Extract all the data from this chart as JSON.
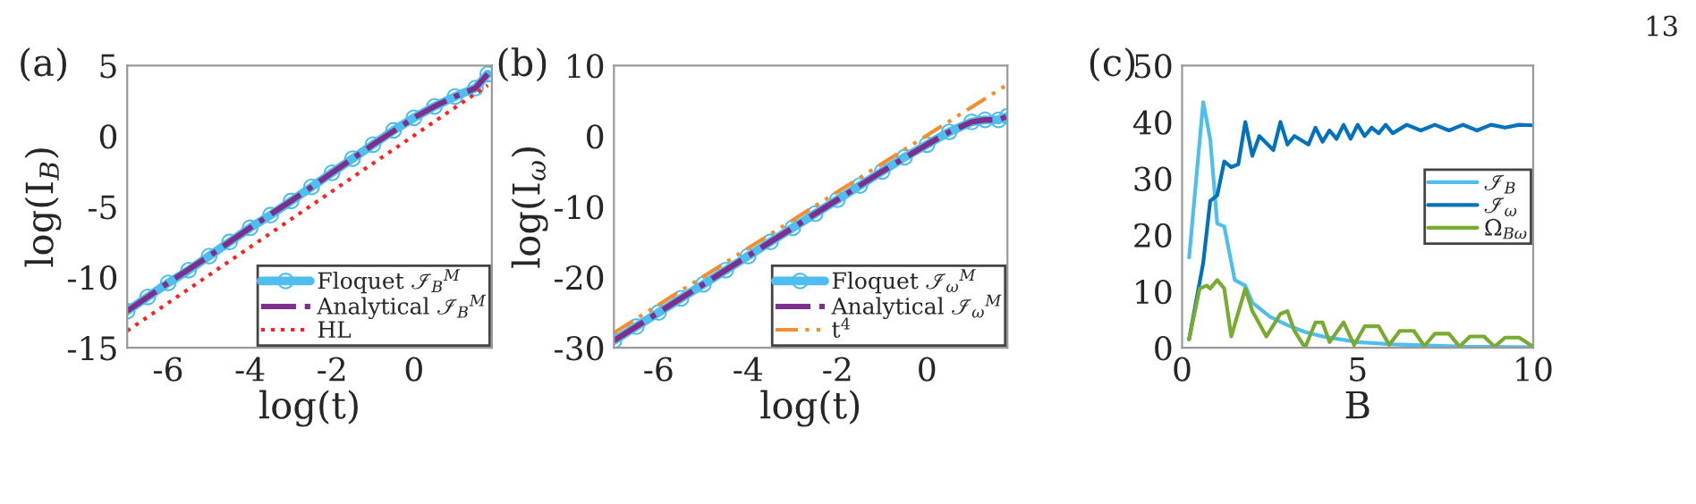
{
  "chart_data": [
    {
      "type": "line",
      "title": "(a)",
      "xlabel": "log(t)",
      "ylabel": "log(I$_{B}$)",
      "xlim": [
        -7,
        1.9
      ],
      "ylim": [
        -15,
        5
      ],
      "xticks": [
        -6,
        -4,
        -2,
        0
      ],
      "yticks": [
        -15,
        -10,
        -5,
        0,
        5
      ],
      "legend": "bottom right",
      "grid": false,
      "series": [
        {
          "name": "Floquet ℐ$_{B}$$^{M}$",
          "color": "#4dbeee",
          "marker": "circle",
          "line_style": "solid",
          "x": [
            -7,
            -6.5,
            -6,
            -5.5,
            -5,
            -4.5,
            -4,
            -3.5,
            -3,
            -2.5,
            -2,
            -1.5,
            -1,
            -0.5,
            0,
            0.5,
            1,
            1.5,
            1.8
          ],
          "values": [
            -12.4,
            -11.4,
            -10.4,
            -9.5,
            -8.5,
            -7.5,
            -6.5,
            -5.6,
            -4.6,
            -3.6,
            -2.6,
            -1.6,
            -0.6,
            0.4,
            1.3,
            2.1,
            2.8,
            3.4,
            4.4
          ]
        },
        {
          "name": "Analytical ℐ$_{B}$$^{M}$",
          "color": "#7e2f8e",
          "marker": "none",
          "line_style": "dashdot",
          "x": [
            -7,
            -6,
            -5,
            -4,
            -3,
            -2,
            -1,
            0,
            0.5,
            1,
            1.5,
            1.8
          ],
          "values": [
            -12.4,
            -10.4,
            -8.5,
            -6.5,
            -4.6,
            -2.6,
            -0.6,
            1.3,
            2.1,
            2.8,
            3.4,
            4.4
          ]
        },
        {
          "name": "HL",
          "color": "#ff2020",
          "marker": "none",
          "line_style": "dotted",
          "x": [
            -7,
            1.8
          ],
          "values": [
            -13.8,
            3.6
          ]
        }
      ]
    },
    {
      "type": "line",
      "title": "(b)",
      "xlabel": "log(t)",
      "ylabel": "log(I$_{ω}$)",
      "xlim": [
        -7,
        1.8
      ],
      "ylim": [
        -30,
        10
      ],
      "xticks": [
        -6,
        -4,
        -2,
        0
      ],
      "yticks": [
        -30,
        -20,
        -10,
        0,
        10
      ],
      "legend": "bottom right",
      "grid": false,
      "series": [
        {
          "name": "Floquet ℐ$_{ω}$$^{M}$",
          "color": "#4dbeee",
          "marker": "circle",
          "line_style": "solid",
          "x": [
            -7,
            -6.5,
            -6,
            -5.5,
            -5,
            -4.5,
            -4,
            -3.5,
            -3,
            -2.5,
            -2,
            -1.5,
            -1,
            -0.5,
            0,
            0.5,
            1,
            1.3,
            1.6,
            1.8
          ],
          "values": [
            -29,
            -27,
            -25,
            -23,
            -21,
            -19,
            -17,
            -15,
            -13,
            -11,
            -9,
            -7,
            -5,
            -3,
            -1.2,
            0.6,
            2,
            2.3,
            2.3,
            2.8
          ]
        },
        {
          "name": "Analytical ℐ$_{ω}$$^{M}$",
          "color": "#7e2f8e",
          "marker": "none",
          "line_style": "dashdot",
          "x": [
            -7,
            -6,
            -5,
            -4,
            -3,
            -2,
            -1,
            0,
            0.5,
            1,
            1.3,
            1.6,
            1.8
          ],
          "values": [
            -29,
            -25,
            -21,
            -17,
            -13,
            -9,
            -5,
            -1.2,
            0.6,
            2,
            2.3,
            2.3,
            2.8
          ]
        },
        {
          "name": "t$^{4}$",
          "color": "#f28e2b",
          "marker": "none",
          "line_style": "dashdotdot",
          "x": [
            -7,
            1.8
          ],
          "values": [
            -27.9,
            7.3
          ]
        }
      ]
    },
    {
      "type": "line",
      "title": "(c)",
      "xlabel": "B",
      "xlim": [
        0,
        10
      ],
      "ylim": [
        0,
        50
      ],
      "xticks": [
        0,
        5,
        10
      ],
      "yticks": [
        0,
        10,
        20,
        30,
        40,
        50
      ],
      "legend": "right",
      "grid": false,
      "annotations": [
        "13"
      ],
      "series": [
        {
          "name": "ℐ$_{B}$",
          "color": "#4dbeee",
          "marker": "none",
          "line_style": "solid",
          "x": [
            0.2,
            0.6,
            0.8,
            1.0,
            1.2,
            1.5,
            1.8,
            2.0,
            2.5,
            3.0,
            3.5,
            4.0,
            5.0,
            6.0,
            7.0,
            8.0,
            10.0
          ],
          "values": [
            16,
            43.5,
            37,
            22,
            21.5,
            12,
            11,
            8,
            5.5,
            4,
            2.8,
            2,
            1,
            0.6,
            0.4,
            0.2,
            0.1
          ]
        },
        {
          "name": "ℐ$_{ω}$",
          "color": "#0072bd",
          "marker": "none",
          "line_style": "solid",
          "x": [
            0.2,
            0.6,
            0.8,
            1.0,
            1.2,
            1.4,
            1.6,
            1.8,
            2.0,
            2.2,
            2.6,
            2.8,
            3.0,
            3.2,
            3.6,
            3.8,
            4.0,
            4.2,
            4.4,
            4.6,
            4.8,
            5.0,
            5.2,
            5.4,
            5.6,
            5.8,
            6.0,
            6.4,
            6.8,
            7.2,
            7.6,
            8.0,
            8.4,
            8.8,
            9.2,
            9.6,
            10.0
          ],
          "values": [
            1.5,
            15,
            26,
            27,
            33,
            32,
            32.5,
            40,
            34,
            37.5,
            35,
            40,
            36,
            37.5,
            36,
            39,
            36.5,
            38.5,
            37,
            39.5,
            37,
            39.5,
            37.5,
            39,
            38,
            39.5,
            38,
            39.5,
            38.5,
            39.5,
            38.5,
            39.5,
            38.5,
            39.5,
            39,
            39.5,
            39.4
          ]
        },
        {
          "name": "Ω$_{Bω}$",
          "color": "#77ac30",
          "marker": "none",
          "line_style": "solid",
          "x": [
            0.2,
            0.5,
            0.7,
            0.8,
            1.0,
            1.2,
            1.4,
            1.8,
            2.0,
            2.4,
            2.8,
            3.0,
            3.2,
            3.5,
            3.8,
            4.0,
            4.2,
            4.6,
            4.9,
            5.2,
            5.6,
            5.9,
            6.2,
            6.6,
            6.9,
            7.2,
            7.6,
            7.9,
            8.2,
            8.6,
            8.9,
            9.2,
            9.6,
            10.0
          ],
          "values": [
            1.5,
            10.5,
            11,
            10.5,
            12,
            10.5,
            2,
            10.5,
            6.5,
            2,
            6,
            6.5,
            3,
            0,
            4.5,
            4.5,
            1,
            4.5,
            0.5,
            3.8,
            3.8,
            0.5,
            3,
            3,
            0.3,
            2.5,
            2.5,
            0.2,
            2,
            2,
            0.2,
            1.8,
            1.8,
            0.2
          ]
        }
      ]
    }
  ]
}
